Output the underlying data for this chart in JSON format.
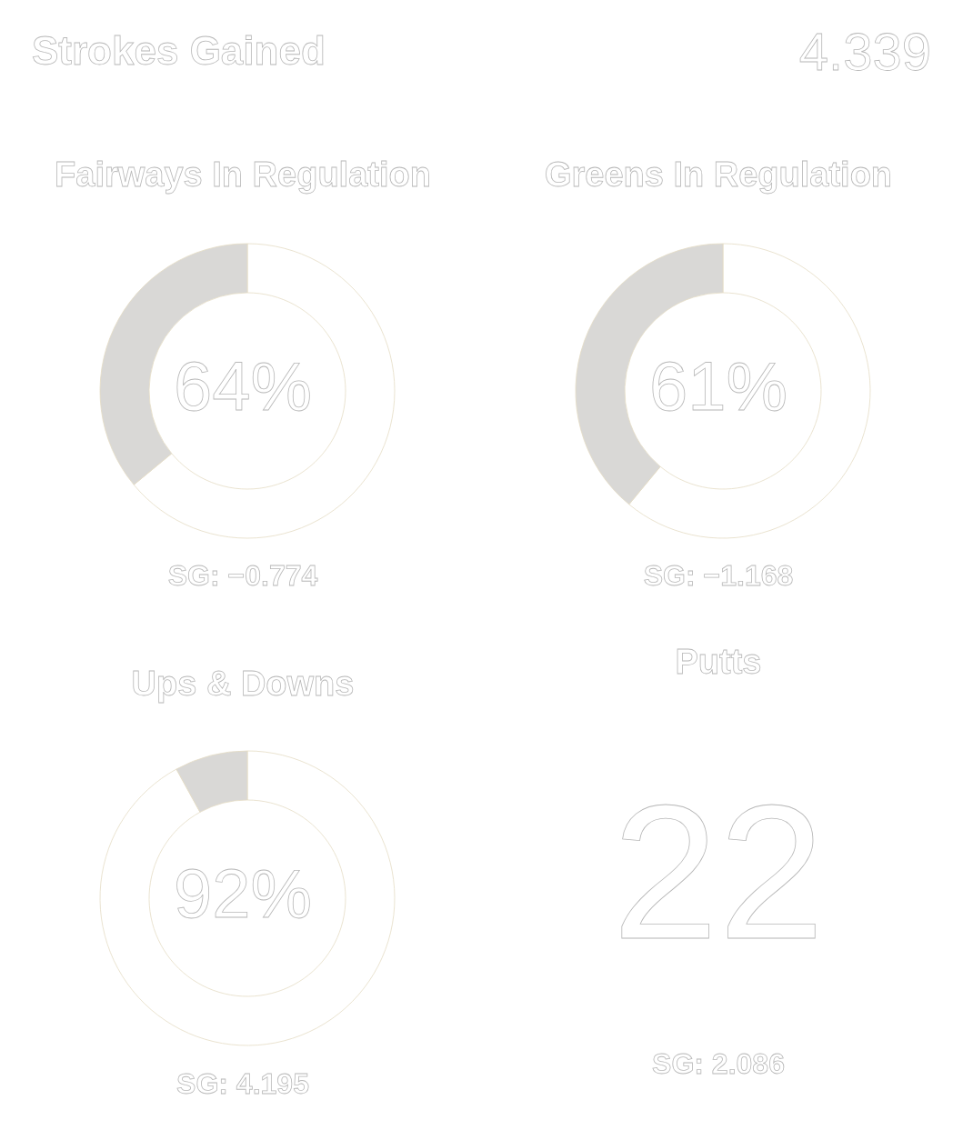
{
  "chart_data": [
    {
      "type": "other",
      "title": "Strokes Gained",
      "annotations": [
        "4.339"
      ]
    },
    {
      "type": "donut",
      "title": "Fairways In Regulation",
      "categories": [
        null,
        null
      ],
      "values": [
        64,
        36
      ],
      "colors": [
        "#ffffff",
        "#d9d8d6"
      ],
      "annotations": [
        "64%",
        "SG: −0.774"
      ]
    },
    {
      "type": "donut",
      "title": "Greens In Regulation",
      "categories": [
        null,
        null
      ],
      "values": [
        61,
        39
      ],
      "colors": [
        "#ffffff",
        "#d9d8d6"
      ],
      "annotations": [
        "61%",
        "SG: −1.168"
      ]
    },
    {
      "type": "donut",
      "title": "Ups & Downs",
      "categories": [
        null,
        null
      ],
      "values": [
        92,
        8
      ],
      "colors": [
        "#ffffff",
        "#d9d8d6"
      ],
      "annotations": [
        "92%",
        "SG: 4.195"
      ]
    },
    {
      "type": "other",
      "title": "Putts",
      "annotations": [
        "22",
        "SG: 2.086"
      ]
    }
  ]
}
